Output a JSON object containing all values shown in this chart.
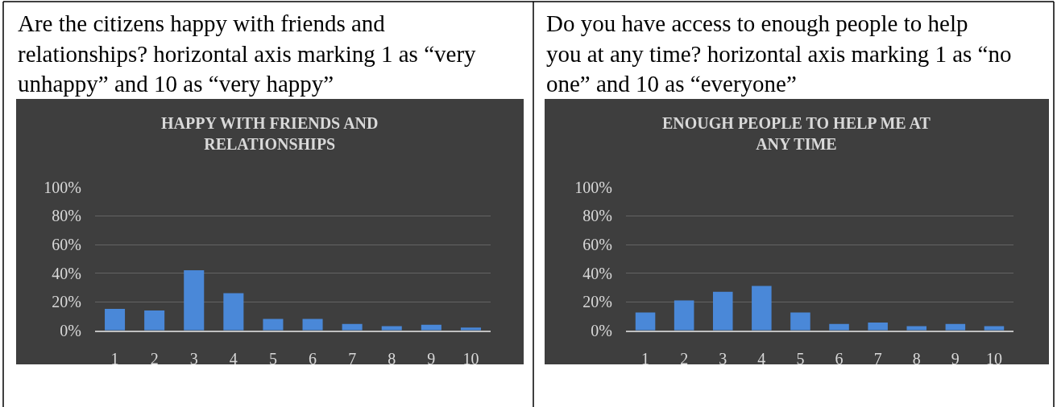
{
  "chart_data": [
    {
      "type": "bar",
      "title": "HAPPY WITH FRIENDS AND RELATIONSHIPS",
      "annotations": [
        "Are the citizens happy with friends and relationships? horizontal axis marking 1 as “very unhappy” and 10 as “very happy”"
      ],
      "categories": [
        "1",
        "2",
        "3",
        "4",
        "5",
        "6",
        "7",
        "8",
        "9",
        "10"
      ],
      "values": [
        15,
        14,
        42,
        26,
        8,
        8,
        4.5,
        3,
        4,
        2
      ],
      "color": "#4a88d8",
      "ylim": [
        0,
        100
      ],
      "yticks": [
        {
          "value": 0,
          "label": "0%"
        },
        {
          "value": 20,
          "label": "20%"
        },
        {
          "value": 40,
          "label": "40%"
        },
        {
          "value": 60,
          "label": "60%"
        },
        {
          "value": 80,
          "label": "80%"
        },
        {
          "value": 100,
          "label": "100%"
        }
      ],
      "grid": "y"
    },
    {
      "type": "bar",
      "title": "ENOUGH PEOPLE TO HELP ME AT ANY TIME",
      "annotations": [
        "Do you have access to enough people to help you at any time? horizontal axis marking 1 as “no one” and 10 as “everyone”"
      ],
      "categories": [
        "1",
        "2",
        "3",
        "4",
        "5",
        "6",
        "7",
        "8",
        "9",
        "10"
      ],
      "values": [
        12.5,
        21,
        27,
        31,
        12.5,
        4.5,
        5.5,
        3,
        4.5,
        3
      ],
      "color": "#4a88d8",
      "ylim": [
        0,
        100
      ],
      "yticks": [
        {
          "value": 0,
          "label": "0%"
        },
        {
          "value": 20,
          "label": "20%"
        },
        {
          "value": 40,
          "label": "40%"
        },
        {
          "value": 60,
          "label": "60%"
        },
        {
          "value": 80,
          "label": "80%"
        },
        {
          "value": 100,
          "label": "100%"
        }
      ],
      "grid": "y"
    }
  ]
}
